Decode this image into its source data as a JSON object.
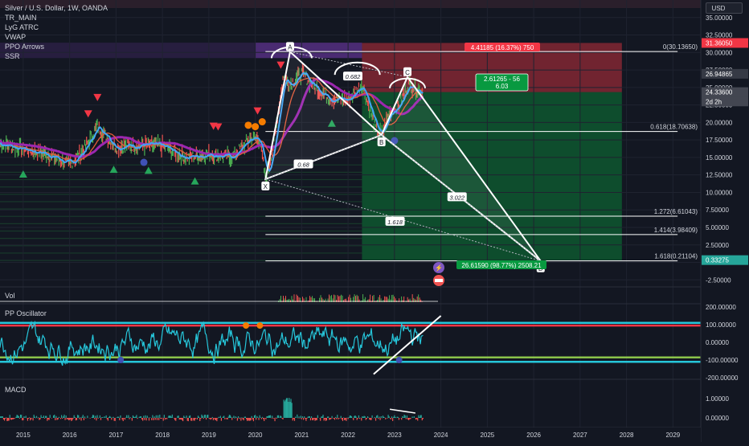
{
  "symbol_legend": {
    "title": "Silver / U.S. Dollar, 1W, OANDA",
    "indicators": [
      "TR_MAIN",
      "LyG ATRC",
      "VWAP",
      "PPO Arrows",
      "SSR"
    ]
  },
  "currency_button": "USD",
  "price_scale": {
    "ticks": [
      "35.00000",
      "32.50000",
      "30.00000",
      "27.50000",
      "25.00000",
      "22.50000",
      "20.00000",
      "17.50000",
      "15.00000",
      "12.50000",
      "10.00000",
      "7.50000",
      "5.00000",
      "2.50000",
      "0.00000",
      "-2.50000"
    ],
    "badges": [
      {
        "label": "31.36050",
        "color": "#f23645"
      },
      {
        "label": "26.94865",
        "color": "#363a45"
      },
      {
        "label": "24.33600",
        "color": "#434651"
      },
      {
        "label": "2d 2h",
        "color": "#434651"
      },
      {
        "label": "0.33275",
        "color": "#26a69a"
      }
    ]
  },
  "x_axis": {
    "years": [
      "2015",
      "2016",
      "2017",
      "2018",
      "2019",
      "2020",
      "2021",
      "2022",
      "2023",
      "2024",
      "2025",
      "2026",
      "2027",
      "2028",
      "2029"
    ]
  },
  "harmonic": {
    "points": [
      "X",
      "A",
      "B",
      "C",
      "D"
    ],
    "ratios": [
      "0.682",
      "0.68",
      "3.022",
      "1.618"
    ]
  },
  "fib_levels": [
    {
      "label": "0(30.13650)",
      "price": 30.1365
    },
    {
      "label": "0.618(18.70638)",
      "price": 18.70638
    },
    {
      "label": "1.272(6.61043)",
      "price": 6.61043
    },
    {
      "label": "1.414(3.98409)",
      "price": 3.98409
    },
    {
      "label": "1.618(0.21104)",
      "price": 0.21104
    }
  ],
  "position_tool": {
    "stop_label": "4.41185 (16.37%) 750",
    "entry_label_1": "2.61265 - 56",
    "entry_label_2": "6.03",
    "target_label": "26.61590 (98.77%) 2508.21"
  },
  "panes": {
    "vol": {
      "label": "Vol"
    },
    "pp": {
      "label": "PP Oscillator",
      "ticks": [
        "200.00000",
        "100.00000",
        "0.00000",
        "-100.00000",
        "-200.00000"
      ]
    },
    "macd": {
      "label": "MACD",
      "ticks": [
        "1.00000",
        "0.00000"
      ]
    }
  },
  "chart_data": {
    "type": "line",
    "title": "Silver / U.S. Dollar, 1W, OANDA",
    "xlabel": "",
    "ylabel": "",
    "ylim": [
      -3.5,
      37.5
    ],
    "x_range": [
      2014.5,
      2029.6
    ],
    "grid": true,
    "series": [
      {
        "name": "Price",
        "x": [
          2014.5,
          2015.0,
          2015.5,
          2016.0,
          2016.3,
          2016.6,
          2017.0,
          2017.5,
          2018.0,
          2018.5,
          2019.0,
          2019.5,
          2019.9,
          2020.1,
          2020.22,
          2020.4,
          2020.6,
          2020.75,
          2021.0,
          2021.3,
          2021.6,
          2022.0,
          2022.3,
          2022.6,
          2022.72,
          2022.9,
          2023.1,
          2023.3,
          2023.6
        ],
        "y": [
          17.0,
          16.2,
          15.5,
          14.0,
          16.0,
          19.5,
          16.5,
          16.8,
          16.6,
          15.0,
          15.5,
          15.0,
          17.8,
          17.5,
          11.9,
          17.0,
          26.5,
          25.5,
          27.0,
          25.0,
          23.5,
          23.2,
          25.5,
          19.0,
          18.2,
          21.5,
          22.5,
          25.5,
          24.3
        ]
      }
    ],
    "harmonic_points": [
      {
        "label": "X",
        "x": 2020.22,
        "y": 11.9
      },
      {
        "label": "A",
        "x": 2020.75,
        "y": 30.1
      },
      {
        "label": "B",
        "x": 2022.72,
        "y": 18.2
      },
      {
        "label": "C",
        "x": 2023.28,
        "y": 26.5
      },
      {
        "label": "D",
        "x": 2026.15,
        "y": 0.2
      }
    ],
    "fib_levels": [
      30.1365,
      18.70638,
      6.61043,
      3.98409,
      0.21104
    ],
    "position": {
      "entry": 24.336,
      "stop": 31.3605,
      "target": 0.33275,
      "entry_ratio_label": "6.03"
    }
  }
}
